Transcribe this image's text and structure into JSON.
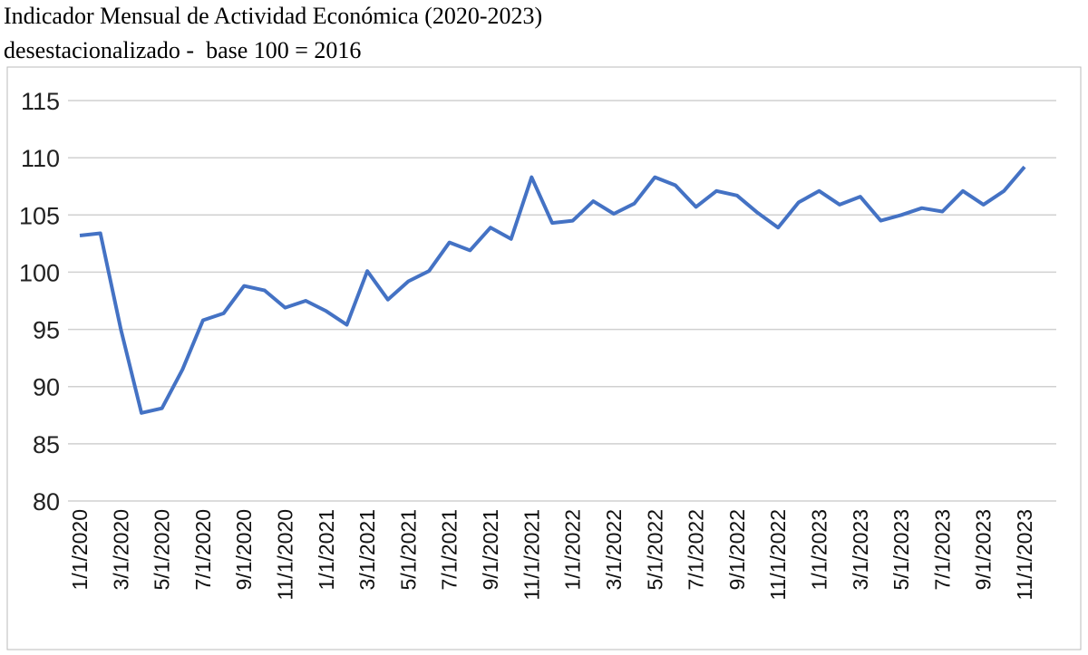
{
  "chart_data": {
    "type": "line",
    "title": "Indicador Mensual de Actividad Económica (2020-2023)",
    "subtitle": "desestacionalizado -  base 100 = 2016",
    "categories": [
      "1/1/2020",
      null,
      "3/1/2020",
      null,
      "5/1/2020",
      null,
      "7/1/2020",
      null,
      "9/1/2020",
      null,
      "11/1/2020",
      null,
      "1/1/2021",
      null,
      "3/1/2021",
      null,
      "5/1/2021",
      null,
      "7/1/2021",
      null,
      "9/1/2021",
      null,
      "11/1/2021",
      null,
      "1/1/2022",
      null,
      "3/1/2022",
      null,
      "5/1/2022",
      null,
      "7/1/2022",
      null,
      "9/1/2022",
      null,
      "11/1/2022",
      null,
      "1/1/2023",
      null,
      "3/1/2023",
      null,
      "5/1/2023",
      null,
      "7/1/2023",
      null,
      "9/1/2023",
      null,
      "11/1/2023"
    ],
    "values": [
      103.2,
      103.4,
      95.0,
      87.7,
      88.1,
      91.5,
      95.8,
      96.4,
      98.8,
      98.4,
      96.9,
      97.5,
      96.6,
      95.4,
      100.1,
      97.6,
      99.2,
      100.1,
      102.6,
      101.9,
      103.9,
      102.9,
      108.3,
      104.3,
      104.5,
      106.2,
      105.1,
      106.0,
      108.3,
      107.6,
      105.7,
      107.1,
      106.7,
      105.2,
      103.9,
      106.1,
      107.1,
      105.9,
      106.6,
      104.5,
      105.0,
      105.6,
      105.3,
      107.1,
      105.9,
      107.1,
      109.2
    ],
    "color": "#4472c4",
    "ylim": [
      80,
      115
    ],
    "yticks": [
      80,
      85,
      90,
      95,
      100,
      105,
      110,
      115
    ],
    "grid": true
  }
}
